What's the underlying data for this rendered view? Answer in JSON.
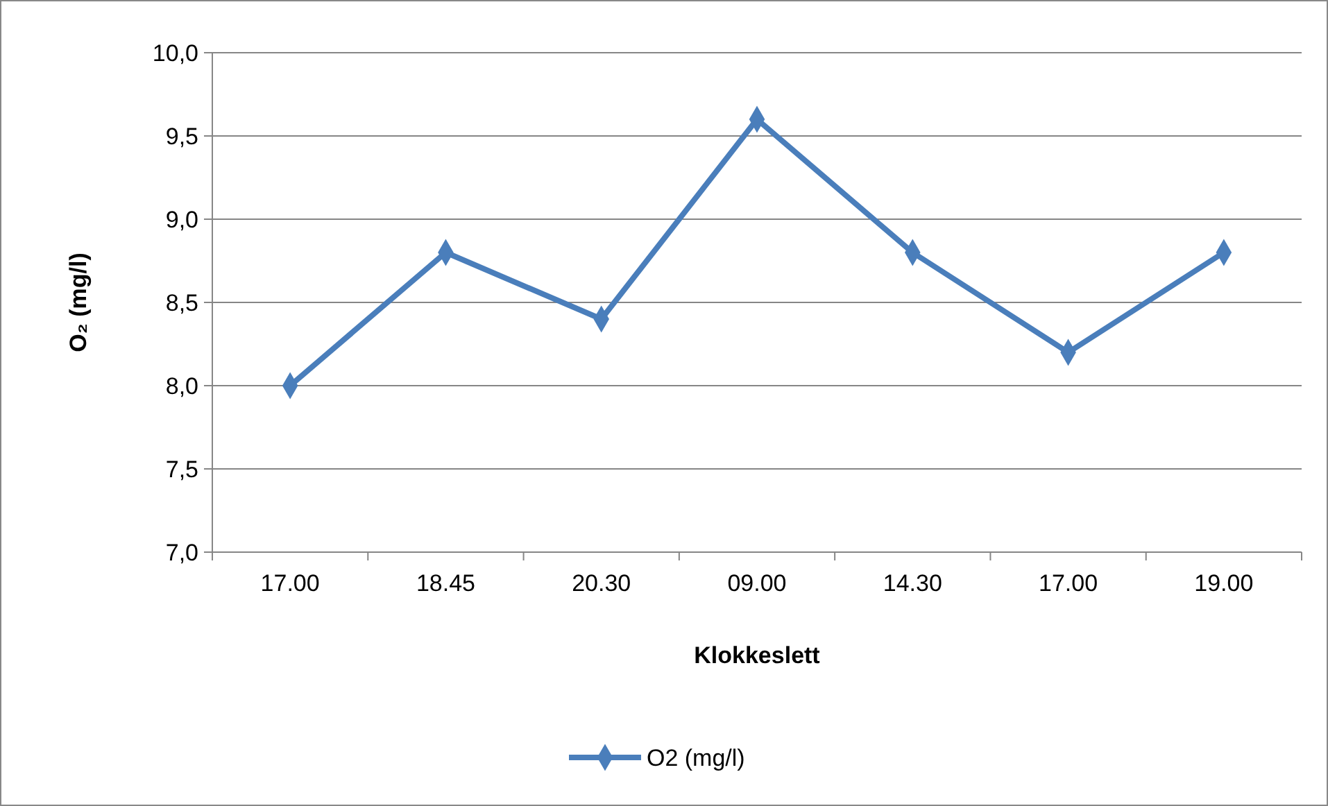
{
  "chart_data": {
    "type": "line",
    "categories": [
      "17.00",
      "18.45",
      "20.30",
      "09.00",
      "14.30",
      "17.00",
      "19.00"
    ],
    "series": [
      {
        "name": "O2 (mg/l)",
        "color": "#4a7ebb",
        "values": [
          8.0,
          8.8,
          8.4,
          9.6,
          8.8,
          8.2,
          8.8
        ]
      }
    ],
    "xlabel": "Klokkeslett",
    "ylabel": "O₂ (mg/l)",
    "ylim": [
      7,
      10
    ],
    "yticks": [
      {
        "value": 7,
        "label": "7,0"
      },
      {
        "value": 7.5,
        "label": "7,5"
      },
      {
        "value": 8,
        "label": "8,0"
      },
      {
        "value": 8.5,
        "label": "8,5"
      },
      {
        "value": 9,
        "label": "9,0"
      },
      {
        "value": 9.5,
        "label": "9,5"
      },
      {
        "value": 10,
        "label": "10,0"
      }
    ],
    "grid": "y",
    "legend": "bottom",
    "marker": "diamond",
    "line_style": "solid"
  }
}
